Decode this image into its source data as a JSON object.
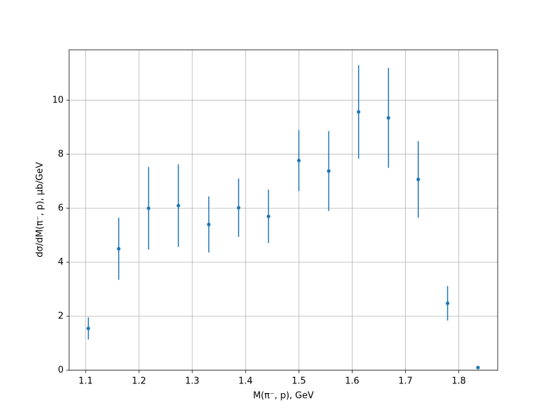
{
  "chart_data": {
    "type": "errorbar",
    "xlabel": "M(π⁻, p), GeV",
    "ylabel": "dσ/dM(π⁻, p), μb/GeV",
    "x": [
      1.105,
      1.162,
      1.218,
      1.274,
      1.331,
      1.387,
      1.443,
      1.5,
      1.556,
      1.612,
      1.668,
      1.724,
      1.779,
      1.836
    ],
    "values": [
      1.55,
      4.5,
      6.0,
      6.1,
      5.4,
      6.02,
      5.7,
      7.77,
      7.38,
      9.57,
      9.35,
      7.07,
      2.48,
      0.1
    ],
    "errors": [
      0.41,
      1.15,
      1.53,
      1.53,
      1.04,
      1.08,
      0.99,
      1.13,
      1.48,
      1.73,
      1.85,
      1.42,
      0.64,
      0.05
    ],
    "color": "#1f77b4",
    "xlim": [
      1.069,
      1.873
    ],
    "ylim": [
      0,
      11.87
    ],
    "xticks": [
      1.1,
      1.2,
      1.3,
      1.4,
      1.5,
      1.6,
      1.7,
      1.8
    ],
    "yticks": [
      0,
      2,
      4,
      6,
      8,
      10
    ],
    "grid": true
  }
}
